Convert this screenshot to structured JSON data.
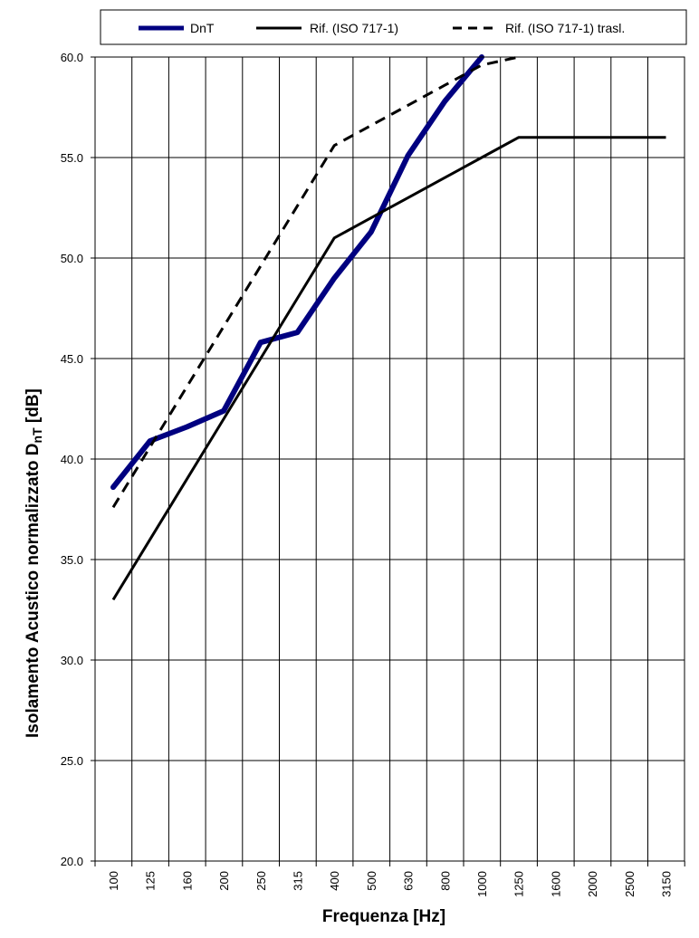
{
  "chart_data": {
    "type": "line",
    "categories": [
      "100",
      "125",
      "160",
      "200",
      "250",
      "315",
      "400",
      "500",
      "630",
      "800",
      "1000",
      "1250",
      "1600",
      "2000",
      "2500",
      "3150"
    ],
    "xlabel": "Frequenza  [Hz]",
    "ylabel_main": "Isolamento  Acustico  normalizzato  D",
    "ylabel_sub": "nT",
    "ylabel_unit": " [dB]",
    "ylim": [
      20.0,
      60.0
    ],
    "yticks": [
      "20.0",
      "25.0",
      "30.0",
      "35.0",
      "40.0",
      "45.0",
      "50.0",
      "55.0",
      "60.0"
    ],
    "grid": true,
    "legend_position": "top",
    "series": [
      {
        "name": "DnT",
        "style": "thick",
        "color": "#000080",
        "values": [
          38.6,
          40.9,
          41.6,
          42.4,
          45.8,
          46.3,
          49.0,
          51.3,
          55.1,
          57.8,
          60.0,
          null,
          null,
          null,
          null,
          null
        ]
      },
      {
        "name": "Rif. (ISO 717-1)",
        "style": "solid",
        "color": "#000000",
        "values": [
          33.0,
          36.0,
          39.0,
          42.0,
          45.0,
          48.0,
          51.0,
          52.0,
          53.0,
          54.0,
          55.0,
          56.0,
          56.0,
          56.0,
          56.0,
          56.0
        ]
      },
      {
        "name": "Rif. (ISO 717-1) trasl.",
        "style": "dashed",
        "color": "#000000",
        "values": [
          37.6,
          40.6,
          43.6,
          46.6,
          49.6,
          52.6,
          55.6,
          56.6,
          57.6,
          58.6,
          59.6,
          60.0,
          null,
          null,
          null,
          null
        ]
      }
    ]
  }
}
